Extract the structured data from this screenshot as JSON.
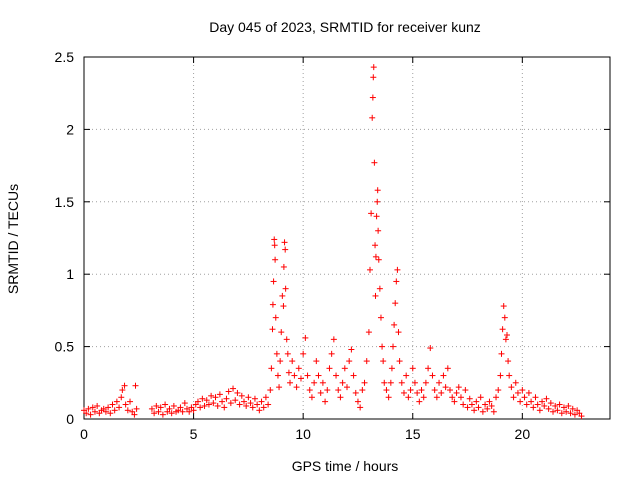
{
  "chart_data": {
    "type": "scatter",
    "title": "Day 045 of 2023, SRMTID for receiver kunz",
    "xlabel": "GPS time / hours",
    "ylabel": "SRMTID / TECUs",
    "xlim": [
      0,
      24
    ],
    "ylim": [
      0,
      2.5
    ],
    "xticks": [
      0,
      5,
      10,
      15,
      20
    ],
    "yticks": [
      0,
      0.5,
      1,
      1.5,
      2,
      2.5
    ],
    "grid": true,
    "marker": "+",
    "color": "#ff0000",
    "series": [
      {
        "name": "SRMTID",
        "points": [
          [
            0.0,
            0.06
          ],
          [
            0.1,
            0.04
          ],
          [
            0.2,
            0.07
          ],
          [
            0.3,
            0.03
          ],
          [
            0.4,
            0.08
          ],
          [
            0.5,
            0.05
          ],
          [
            0.6,
            0.09
          ],
          [
            0.7,
            0.04
          ],
          [
            0.8,
            0.06
          ],
          [
            0.9,
            0.07
          ],
          [
            1.0,
            0.05
          ],
          [
            1.1,
            0.08
          ],
          [
            1.2,
            0.04
          ],
          [
            1.3,
            0.1
          ],
          [
            1.4,
            0.06
          ],
          [
            1.5,
            0.12
          ],
          [
            1.6,
            0.08
          ],
          [
            1.7,
            0.15
          ],
          [
            1.75,
            0.2
          ],
          [
            1.85,
            0.23
          ],
          [
            1.9,
            0.1
          ],
          [
            2.0,
            0.06
          ],
          [
            2.1,
            0.12
          ],
          [
            2.2,
            0.05
          ],
          [
            2.3,
            0.03
          ],
          [
            2.35,
            0.23
          ],
          [
            2.4,
            0.07
          ],
          [
            3.1,
            0.07
          ],
          [
            3.2,
            0.04
          ],
          [
            3.3,
            0.09
          ],
          [
            3.4,
            0.05
          ],
          [
            3.5,
            0.08
          ],
          [
            3.6,
            0.03
          ],
          [
            3.7,
            0.1
          ],
          [
            3.8,
            0.05
          ],
          [
            3.9,
            0.07
          ],
          [
            4.0,
            0.04
          ],
          [
            4.1,
            0.09
          ],
          [
            4.2,
            0.05
          ],
          [
            4.3,
            0.06
          ],
          [
            4.4,
            0.08
          ],
          [
            4.5,
            0.05
          ],
          [
            4.6,
            0.11
          ],
          [
            4.7,
            0.07
          ],
          [
            4.8,
            0.05
          ],
          [
            4.9,
            0.08
          ],
          [
            5.0,
            0.06
          ],
          [
            5.1,
            0.1
          ],
          [
            5.2,
            0.12
          ],
          [
            5.3,
            0.08
          ],
          [
            5.4,
            0.14
          ],
          [
            5.5,
            0.09
          ],
          [
            5.6,
            0.13
          ],
          [
            5.7,
            0.1
          ],
          [
            5.8,
            0.16
          ],
          [
            5.9,
            0.11
          ],
          [
            6.0,
            0.15
          ],
          [
            6.1,
            0.09
          ],
          [
            6.2,
            0.17
          ],
          [
            6.3,
            0.12
          ],
          [
            6.4,
            0.08
          ],
          [
            6.5,
            0.14
          ],
          [
            6.6,
            0.19
          ],
          [
            6.7,
            0.11
          ],
          [
            6.8,
            0.21
          ],
          [
            6.9,
            0.13
          ],
          [
            7.0,
            0.18
          ],
          [
            7.1,
            0.1
          ],
          [
            7.2,
            0.16
          ],
          [
            7.3,
            0.12
          ],
          [
            7.4,
            0.09
          ],
          [
            7.5,
            0.15
          ],
          [
            7.6,
            0.11
          ],
          [
            7.7,
            0.08
          ],
          [
            7.8,
            0.14
          ],
          [
            7.9,
            0.1
          ],
          [
            8.0,
            0.06
          ],
          [
            8.1,
            0.12
          ],
          [
            8.2,
            0.08
          ],
          [
            8.3,
            0.15
          ],
          [
            8.4,
            0.1
          ],
          [
            8.5,
            0.2
          ],
          [
            8.55,
            0.35
          ],
          [
            8.6,
            0.62
          ],
          [
            8.62,
            0.79
          ],
          [
            8.65,
            0.95
          ],
          [
            8.68,
            1.24
          ],
          [
            8.7,
            1.2
          ],
          [
            8.72,
            1.1
          ],
          [
            8.75,
            0.7
          ],
          [
            8.8,
            0.45
          ],
          [
            8.85,
            0.3
          ],
          [
            8.9,
            0.22
          ],
          [
            8.95,
            0.4
          ],
          [
            9.0,
            0.6
          ],
          [
            9.05,
            0.85
          ],
          [
            9.1,
            0.78
          ],
          [
            9.12,
            1.05
          ],
          [
            9.15,
            1.22
          ],
          [
            9.18,
            1.17
          ],
          [
            9.2,
            0.9
          ],
          [
            9.25,
            0.55
          ],
          [
            9.3,
            0.45
          ],
          [
            9.35,
            0.32
          ],
          [
            9.4,
            0.25
          ],
          [
            9.5,
            0.4
          ],
          [
            9.6,
            0.3
          ],
          [
            9.7,
            0.22
          ],
          [
            9.8,
            0.35
          ],
          [
            9.9,
            0.28
          ],
          [
            10.0,
            0.45
          ],
          [
            10.1,
            0.56
          ],
          [
            10.2,
            0.3
          ],
          [
            10.3,
            0.2
          ],
          [
            10.4,
            0.15
          ],
          [
            10.5,
            0.25
          ],
          [
            10.6,
            0.4
          ],
          [
            10.7,
            0.3
          ],
          [
            10.8,
            0.18
          ],
          [
            10.9,
            0.25
          ],
          [
            11.0,
            0.12
          ],
          [
            11.1,
            0.2
          ],
          [
            11.2,
            0.35
          ],
          [
            11.3,
            0.45
          ],
          [
            11.4,
            0.55
          ],
          [
            11.5,
            0.3
          ],
          [
            11.6,
            0.2
          ],
          [
            11.7,
            0.15
          ],
          [
            11.8,
            0.25
          ],
          [
            11.9,
            0.35
          ],
          [
            12.0,
            0.22
          ],
          [
            12.1,
            0.4
          ],
          [
            12.2,
            0.48
          ],
          [
            12.3,
            0.3
          ],
          [
            12.4,
            0.18
          ],
          [
            12.5,
            0.12
          ],
          [
            12.6,
            0.08
          ],
          [
            12.7,
            0.2
          ],
          [
            12.8,
            0.25
          ],
          [
            12.9,
            0.4
          ],
          [
            13.0,
            0.6
          ],
          [
            13.05,
            1.03
          ],
          [
            13.1,
            1.42
          ],
          [
            13.15,
            2.08
          ],
          [
            13.18,
            2.22
          ],
          [
            13.2,
            2.36
          ],
          [
            13.22,
            2.43
          ],
          [
            13.25,
            1.77
          ],
          [
            13.28,
            1.2
          ],
          [
            13.3,
            0.85
          ],
          [
            13.32,
            1.12
          ],
          [
            13.35,
            1.4
          ],
          [
            13.38,
            1.5
          ],
          [
            13.4,
            1.58
          ],
          [
            13.42,
            1.3
          ],
          [
            13.45,
            1.1
          ],
          [
            13.5,
            0.9
          ],
          [
            13.55,
            0.7
          ],
          [
            13.6,
            0.5
          ],
          [
            13.65,
            0.4
          ],
          [
            13.7,
            0.25
          ],
          [
            13.8,
            0.2
          ],
          [
            13.9,
            0.15
          ],
          [
            14.0,
            0.25
          ],
          [
            14.05,
            0.35
          ],
          [
            14.1,
            0.5
          ],
          [
            14.15,
            0.65
          ],
          [
            14.2,
            0.8
          ],
          [
            14.25,
            0.95
          ],
          [
            14.3,
            1.03
          ],
          [
            14.35,
            0.6
          ],
          [
            14.4,
            0.4
          ],
          [
            14.5,
            0.25
          ],
          [
            14.6,
            0.18
          ],
          [
            14.7,
            0.3
          ],
          [
            14.8,
            0.15
          ],
          [
            14.9,
            0.2
          ],
          [
            15.0,
            0.35
          ],
          [
            15.1,
            0.25
          ],
          [
            15.2,
            0.18
          ],
          [
            15.3,
            0.12
          ],
          [
            15.4,
            0.2
          ],
          [
            15.5,
            0.15
          ],
          [
            15.6,
            0.25
          ],
          [
            15.7,
            0.35
          ],
          [
            15.8,
            0.49
          ],
          [
            15.9,
            0.3
          ],
          [
            16.0,
            0.2
          ],
          [
            16.1,
            0.15
          ],
          [
            16.2,
            0.25
          ],
          [
            16.3,
            0.18
          ],
          [
            16.4,
            0.3
          ],
          [
            16.5,
            0.22
          ],
          [
            16.6,
            0.35
          ],
          [
            16.7,
            0.2
          ],
          [
            16.8,
            0.15
          ],
          [
            16.9,
            0.12
          ],
          [
            17.0,
            0.18
          ],
          [
            17.1,
            0.22
          ],
          [
            17.2,
            0.15
          ],
          [
            17.3,
            0.1
          ],
          [
            17.4,
            0.2
          ],
          [
            17.5,
            0.08
          ],
          [
            17.6,
            0.14
          ],
          [
            17.7,
            0.1
          ],
          [
            17.8,
            0.06
          ],
          [
            17.9,
            0.12
          ],
          [
            18.0,
            0.08
          ],
          [
            18.1,
            0.15
          ],
          [
            18.2,
            0.05
          ],
          [
            18.3,
            0.1
          ],
          [
            18.4,
            0.07
          ],
          [
            18.5,
            0.12
          ],
          [
            18.6,
            0.09
          ],
          [
            18.7,
            0.05
          ],
          [
            18.8,
            0.15
          ],
          [
            18.9,
            0.2
          ],
          [
            19.0,
            0.3
          ],
          [
            19.05,
            0.45
          ],
          [
            19.1,
            0.62
          ],
          [
            19.15,
            0.78
          ],
          [
            19.2,
            0.7
          ],
          [
            19.25,
            0.55
          ],
          [
            19.3,
            0.58
          ],
          [
            19.35,
            0.4
          ],
          [
            19.4,
            0.3
          ],
          [
            19.5,
            0.22
          ],
          [
            19.6,
            0.15
          ],
          [
            19.7,
            0.25
          ],
          [
            19.8,
            0.18
          ],
          [
            19.9,
            0.12
          ],
          [
            20.0,
            0.2
          ],
          [
            20.1,
            0.15
          ],
          [
            20.2,
            0.1
          ],
          [
            20.3,
            0.18
          ],
          [
            20.4,
            0.12
          ],
          [
            20.5,
            0.08
          ],
          [
            20.6,
            0.15
          ],
          [
            20.7,
            0.1
          ],
          [
            20.8,
            0.06
          ],
          [
            20.9,
            0.12
          ],
          [
            21.0,
            0.09
          ],
          [
            21.1,
            0.14
          ],
          [
            21.2,
            0.07
          ],
          [
            21.3,
            0.11
          ],
          [
            21.4,
            0.05
          ],
          [
            21.5,
            0.09
          ],
          [
            21.6,
            0.06
          ],
          [
            21.7,
            0.1
          ],
          [
            21.8,
            0.04
          ],
          [
            21.9,
            0.08
          ],
          [
            22.0,
            0.05
          ],
          [
            22.1,
            0.09
          ],
          [
            22.2,
            0.04
          ],
          [
            22.3,
            0.07
          ],
          [
            22.4,
            0.03
          ],
          [
            22.5,
            0.06
          ],
          [
            22.6,
            0.04
          ],
          [
            22.7,
            0.02
          ]
        ]
      }
    ]
  }
}
